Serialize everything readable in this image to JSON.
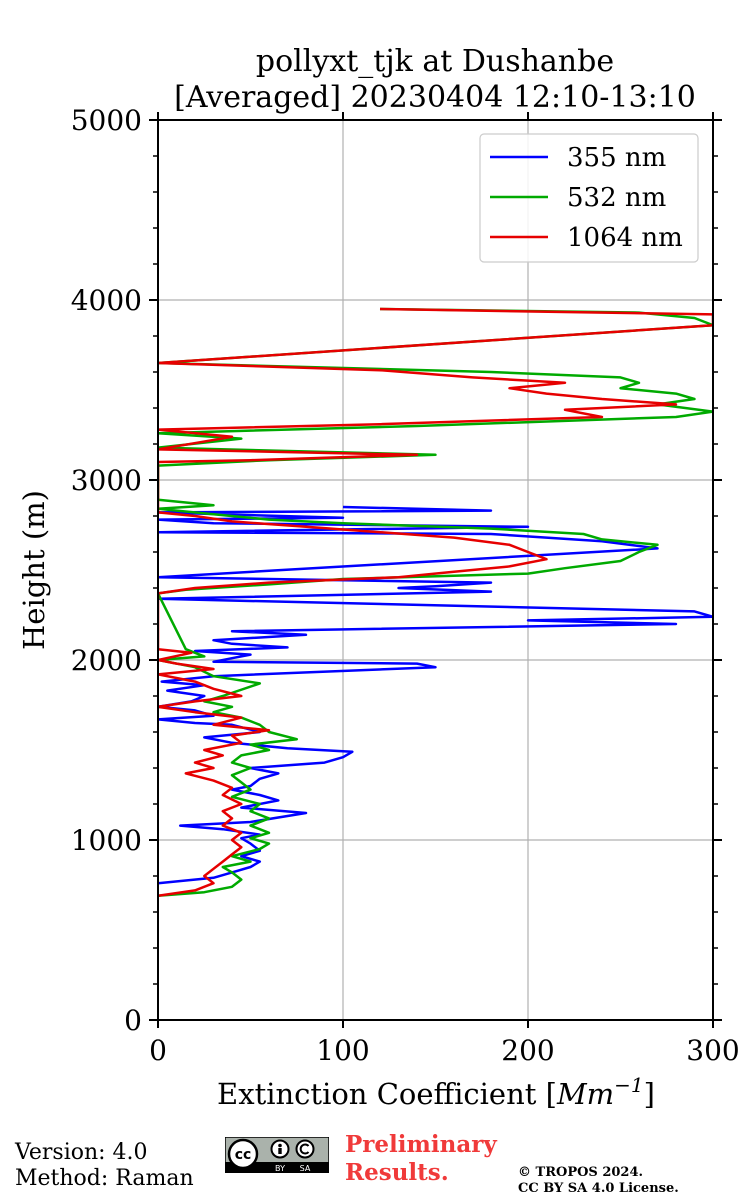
{
  "chart_data": {
    "type": "line",
    "title_line1": "pollyxt_tjk at Dushanbe",
    "title_line2": "[Averaged] 20230404 12:10-13:10",
    "xlabel_prefix": "Extinction Coefficient [",
    "xlabel_unit": "Mm",
    "xlabel_exp": "−1",
    "xlabel_suffix": "]",
    "ylabel": "Height (m)",
    "xlim": [
      0,
      300
    ],
    "ylim": [
      0,
      5000
    ],
    "xticks": [
      0,
      100,
      200,
      300
    ],
    "yticks": [
      0,
      1000,
      2000,
      3000,
      4000,
      5000
    ],
    "xtick_labels": [
      "0",
      "100",
      "200",
      "300"
    ],
    "ytick_labels": [
      "0",
      "1000",
      "2000",
      "3000",
      "4000",
      "5000"
    ],
    "grid": true,
    "legend_position": "top-right",
    "series": [
      {
        "name": "355 nm",
        "color": "#0000ff",
        "points": [
          [
            0,
            760
          ],
          [
            30,
            790
          ],
          [
            40,
            820
          ],
          [
            50,
            850
          ],
          [
            55,
            880
          ],
          [
            45,
            910
          ],
          [
            55,
            940
          ],
          [
            50,
            980
          ],
          [
            45,
            1010
          ],
          [
            55,
            1030
          ],
          [
            35,
            1060
          ],
          [
            12,
            1080
          ],
          [
            50,
            1100
          ],
          [
            80,
            1150
          ],
          [
            45,
            1180
          ],
          [
            65,
            1220
          ],
          [
            55,
            1250
          ],
          [
            40,
            1280
          ],
          [
            50,
            1300
          ],
          [
            55,
            1340
          ],
          [
            65,
            1370
          ],
          [
            50,
            1400
          ],
          [
            90,
            1430
          ],
          [
            100,
            1460
          ],
          [
            105,
            1490
          ],
          [
            70,
            1510
          ],
          [
            40,
            1540
          ],
          [
            25,
            1570
          ],
          [
            55,
            1600
          ],
          [
            40,
            1640
          ],
          [
            20,
            1650
          ],
          [
            0,
            1670
          ],
          [
            30,
            1690
          ],
          [
            20,
            1720
          ],
          [
            0,
            1740
          ],
          [
            18,
            1770
          ],
          [
            25,
            1800
          ],
          [
            5,
            1830
          ],
          [
            25,
            1860
          ],
          [
            2,
            1880
          ],
          [
            30,
            1910
          ],
          [
            150,
            1960
          ],
          [
            140,
            1980
          ],
          [
            30,
            1990
          ],
          [
            40,
            2010
          ],
          [
            50,
            2030
          ],
          [
            20,
            2050
          ],
          [
            70,
            2070
          ],
          [
            40,
            2090
          ],
          [
            30,
            2110
          ],
          [
            80,
            2140
          ],
          [
            40,
            2160
          ],
          [
            280,
            2200
          ],
          [
            200,
            2220
          ],
          [
            300,
            2240
          ],
          [
            290,
            2270
          ],
          [
            0,
            2340
          ],
          [
            180,
            2380
          ],
          [
            130,
            2400
          ],
          [
            150,
            2410
          ],
          [
            180,
            2430
          ],
          [
            0,
            2460
          ],
          [
            270,
            2620
          ],
          [
            240,
            2660
          ],
          [
            180,
            2700
          ],
          [
            0,
            2710
          ],
          [
            200,
            2740
          ],
          [
            30,
            2760
          ],
          [
            0,
            2780
          ],
          [
            100,
            2790
          ],
          [
            0,
            2820
          ],
          [
            180,
            2830
          ],
          [
            100,
            2850
          ]
        ]
      },
      {
        "name": "532 nm",
        "color": "#00aa00",
        "points": [
          [
            0,
            690
          ],
          [
            25,
            710
          ],
          [
            40,
            740
          ],
          [
            45,
            780
          ],
          [
            40,
            820
          ],
          [
            35,
            850
          ],
          [
            50,
            880
          ],
          [
            40,
            910
          ],
          [
            55,
            950
          ],
          [
            60,
            980
          ],
          [
            50,
            1010
          ],
          [
            60,
            1040
          ],
          [
            50,
            1080
          ],
          [
            60,
            1120
          ],
          [
            50,
            1160
          ],
          [
            55,
            1200
          ],
          [
            40,
            1240
          ],
          [
            50,
            1280
          ],
          [
            45,
            1320
          ],
          [
            40,
            1360
          ],
          [
            50,
            1400
          ],
          [
            40,
            1430
          ],
          [
            45,
            1470
          ],
          [
            60,
            1500
          ],
          [
            50,
            1530
          ],
          [
            75,
            1560
          ],
          [
            60,
            1600
          ],
          [
            55,
            1640
          ],
          [
            45,
            1680
          ],
          [
            30,
            1710
          ],
          [
            40,
            1740
          ],
          [
            25,
            1770
          ],
          [
            35,
            1800
          ],
          [
            55,
            1870
          ],
          [
            30,
            1910
          ],
          [
            20,
            1960
          ],
          [
            0,
            2000
          ],
          [
            25,
            2020
          ],
          [
            15,
            2060
          ],
          [
            0,
            2370
          ],
          [
            15,
            2390
          ],
          [
            60,
            2420
          ],
          [
            100,
            2450
          ],
          [
            200,
            2480
          ],
          [
            220,
            2510
          ],
          [
            250,
            2550
          ],
          [
            260,
            2600
          ],
          [
            270,
            2640
          ],
          [
            240,
            2670
          ],
          [
            230,
            2700
          ],
          [
            180,
            2730
          ],
          [
            100,
            2760
          ],
          [
            60,
            2780
          ],
          [
            30,
            2810
          ],
          [
            0,
            2840
          ],
          [
            30,
            2860
          ],
          [
            0,
            2890
          ],
          [
            0,
            3080
          ],
          [
            60,
            3110
          ],
          [
            150,
            3140
          ],
          [
            0,
            3180
          ],
          [
            45,
            3230
          ],
          [
            0,
            3260
          ],
          [
            140,
            3300
          ],
          [
            280,
            3350
          ],
          [
            300,
            3380
          ],
          [
            270,
            3420
          ],
          [
            290,
            3450
          ],
          [
            280,
            3480
          ],
          [
            250,
            3510
          ],
          [
            260,
            3540
          ],
          [
            250,
            3570
          ],
          [
            180,
            3600
          ],
          [
            0,
            3650
          ],
          [
            300,
            3860
          ],
          [
            290,
            3900
          ],
          [
            260,
            3930
          ],
          [
            120,
            3950
          ]
        ]
      },
      {
        "name": "1064 nm",
        "color": "#e60000",
        "points": [
          [
            0,
            690
          ],
          [
            20,
            720
          ],
          [
            30,
            760
          ],
          [
            25,
            800
          ],
          [
            30,
            840
          ],
          [
            35,
            880
          ],
          [
            40,
            920
          ],
          [
            45,
            960
          ],
          [
            40,
            1000
          ],
          [
            45,
            1040
          ],
          [
            35,
            1080
          ],
          [
            40,
            1120
          ],
          [
            35,
            1160
          ],
          [
            45,
            1200
          ],
          [
            35,
            1250
          ],
          [
            40,
            1290
          ],
          [
            30,
            1330
          ],
          [
            15,
            1370
          ],
          [
            30,
            1400
          ],
          [
            20,
            1430
          ],
          [
            35,
            1470
          ],
          [
            25,
            1500
          ],
          [
            45,
            1540
          ],
          [
            40,
            1580
          ],
          [
            60,
            1610
          ],
          [
            30,
            1640
          ],
          [
            45,
            1680
          ],
          [
            20,
            1710
          ],
          [
            0,
            1740
          ],
          [
            20,
            1770
          ],
          [
            45,
            1800
          ],
          [
            30,
            1840
          ],
          [
            20,
            1880
          ],
          [
            0,
            1920
          ],
          [
            30,
            1950
          ],
          [
            10,
            1980
          ],
          [
            0,
            2000
          ],
          [
            18,
            2040
          ],
          [
            0,
            2060
          ],
          [
            0,
            2370
          ],
          [
            20,
            2400
          ],
          [
            60,
            2430
          ],
          [
            130,
            2460
          ],
          [
            160,
            2490
          ],
          [
            190,
            2520
          ],
          [
            210,
            2560
          ],
          [
            200,
            2600
          ],
          [
            190,
            2640
          ],
          [
            160,
            2680
          ],
          [
            120,
            2710
          ],
          [
            80,
            2740
          ],
          [
            40,
            2770
          ],
          [
            20,
            2800
          ],
          [
            0,
            2820
          ],
          [
            0,
            3100
          ],
          [
            50,
            3110
          ],
          [
            140,
            3140
          ],
          [
            0,
            3170
          ],
          [
            40,
            3240
          ],
          [
            0,
            3280
          ],
          [
            120,
            3310
          ],
          [
            240,
            3350
          ],
          [
            220,
            3390
          ],
          [
            280,
            3420
          ],
          [
            240,
            3450
          ],
          [
            210,
            3480
          ],
          [
            190,
            3510
          ],
          [
            220,
            3540
          ],
          [
            170,
            3570
          ],
          [
            120,
            3610
          ],
          [
            0,
            3650
          ],
          [
            300,
            3860
          ],
          [
            300,
            3920
          ],
          [
            120,
            3950
          ]
        ]
      }
    ]
  },
  "footer": {
    "version": "Version: 4.0",
    "method": "Method: Raman",
    "prelim_line1": "Preliminary",
    "prelim_line2": "Results.",
    "copyright_line1": "© TROPOS 2024.",
    "copyright_line2": "CC BY SA 4.0 License.",
    "badge_left": "cc",
    "badge_by": "BY",
    "badge_sa": "SA"
  }
}
